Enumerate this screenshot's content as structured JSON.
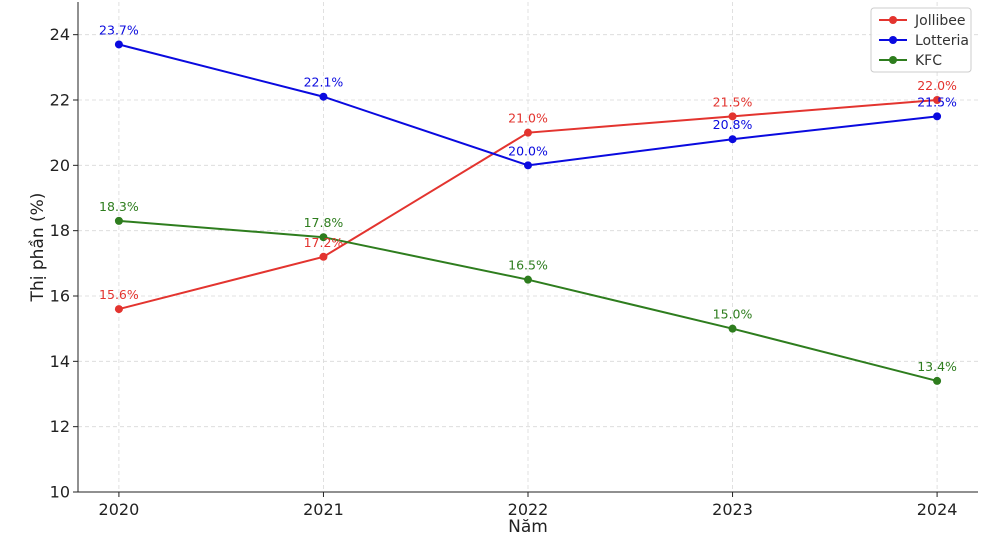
{
  "chart_data": {
    "type": "line",
    "title": "",
    "xlabel": "Năm",
    "ylabel": "Thị phần (%)",
    "x": [
      2020,
      2021,
      2022,
      2023,
      2024
    ],
    "xticks": [
      "2020",
      "2021",
      "2022",
      "2023",
      "2024"
    ],
    "xlim": [
      2019.8,
      2024.2
    ],
    "ylim": [
      10,
      25
    ],
    "yticks": [
      "10",
      "12",
      "14",
      "16",
      "18",
      "20",
      "22",
      "24"
    ],
    "grid": true,
    "legend": "top-right",
    "series": [
      {
        "name": "Jollibee",
        "color": "#e3342f",
        "values": [
          15.6,
          17.2,
          21.0,
          21.5,
          22.0
        ],
        "labels": [
          "15.6%",
          "17.2%",
          "21.0%",
          "21.5%",
          "22.0%"
        ]
      },
      {
        "name": "Lotteria",
        "color": "#0a0adf",
        "values": [
          23.7,
          22.1,
          20.0,
          20.8,
          21.5
        ],
        "labels": [
          "23.7%",
          "22.1%",
          "20.0%",
          "20.8%",
          "21.5%"
        ]
      },
      {
        "name": "KFC",
        "color": "#2e7d1e",
        "values": [
          18.3,
          17.8,
          16.5,
          15.0,
          13.4
        ],
        "labels": [
          "18.3%",
          "17.8%",
          "16.5%",
          "15.0%",
          "13.4%"
        ]
      }
    ]
  }
}
